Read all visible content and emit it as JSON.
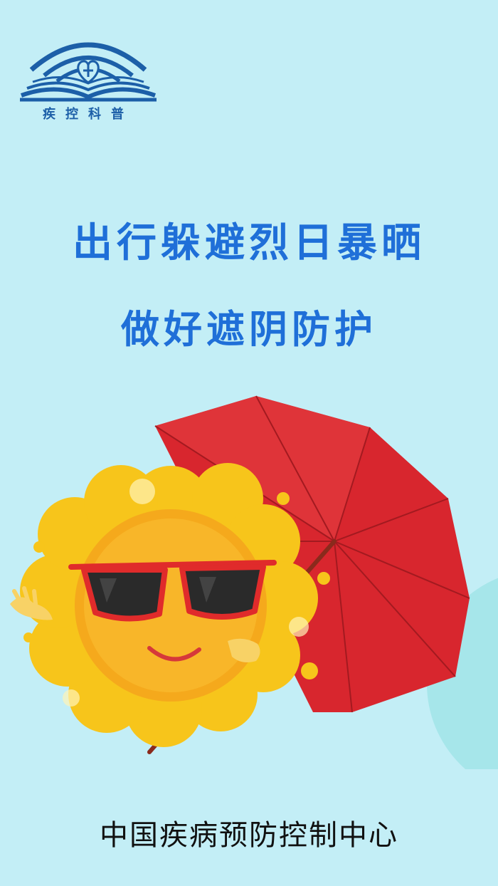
{
  "logo": {
    "icon": "open-book-heart-icon",
    "caption": "疾控科普",
    "color": "#1c5fa8"
  },
  "headline": {
    "line1": "出行躲避烈日暴晒",
    "line2": "做好遮阴防护",
    "color": "#1f6fd8"
  },
  "illustration": {
    "subject": "sun-with-sunglasses-holding-umbrella",
    "colors": {
      "background": "#c3eef6",
      "sun": "#f7c51b",
      "umbrella": "#d8262e",
      "sunglasses_frame": "#e02b2b"
    }
  },
  "footer": {
    "organization": "中国疾病预防控制中心"
  }
}
